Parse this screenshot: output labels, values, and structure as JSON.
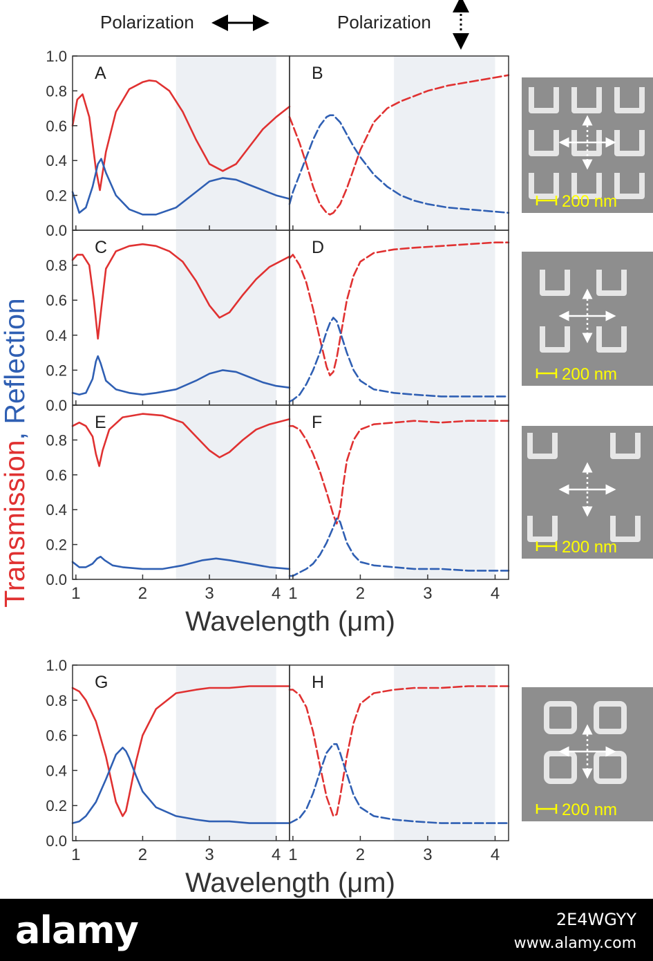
{
  "header": {
    "left_label": "Polarization",
    "right_label": "Polarization"
  },
  "ylabel_parts": [
    "Transmission",
    ", ",
    "Reflection"
  ],
  "xlabel": "Wavelength (μm)",
  "scale_label": "200 nm",
  "colors": {
    "transmission": "#e03131",
    "reflection": "#2f5fb3",
    "shade": "#edf0f4",
    "sem_bg": "#8e8e8e",
    "scale": "#ffff00"
  },
  "footer": {
    "logo": "alamy",
    "image_id": "2E4WGYY",
    "site": "www.alamy.com"
  },
  "chart_data": {
    "type": "line",
    "x_range": [
      0.95,
      4.2
    ],
    "y_range": [
      0,
      1.0
    ],
    "x_ticks": [
      "1",
      "2",
      "3",
      "4"
    ],
    "y_ticks": [
      "0.0",
      "0.2",
      "0.4",
      "0.6",
      "0.8",
      "1.0"
    ],
    "shaded_band": [
      2.5,
      4.0
    ],
    "panels": [
      {
        "label": "A",
        "polarization": "horizontal",
        "series": [
          {
            "quantity": "transmission",
            "style": "solid",
            "x": [
              0.95,
              1.02,
              1.1,
              1.2,
              1.3,
              1.36,
              1.45,
              1.6,
              1.8,
              2.0,
              2.1,
              2.2,
              2.4,
              2.6,
              2.8,
              3.0,
              3.2,
              3.4,
              3.6,
              3.8,
              4.0,
              4.2
            ],
            "y": [
              0.6,
              0.75,
              0.78,
              0.65,
              0.35,
              0.23,
              0.45,
              0.68,
              0.81,
              0.85,
              0.86,
              0.855,
              0.8,
              0.68,
              0.52,
              0.38,
              0.34,
              0.38,
              0.48,
              0.58,
              0.65,
              0.71
            ]
          },
          {
            "quantity": "reflection",
            "style": "solid",
            "x": [
              0.95,
              1.05,
              1.15,
              1.25,
              1.33,
              1.38,
              1.45,
              1.6,
              1.8,
              2.0,
              2.2,
              2.5,
              2.8,
              3.0,
              3.2,
              3.4,
              3.6,
              3.8,
              4.0,
              4.2
            ],
            "y": [
              0.22,
              0.1,
              0.13,
              0.25,
              0.38,
              0.41,
              0.33,
              0.2,
              0.12,
              0.09,
              0.09,
              0.13,
              0.22,
              0.28,
              0.3,
              0.29,
              0.26,
              0.23,
              0.2,
              0.18
            ]
          }
        ]
      },
      {
        "label": "B",
        "polarization": "vertical",
        "series": [
          {
            "quantity": "transmission",
            "style": "dashed",
            "x": [
              0.95,
              1.0,
              1.1,
              1.2,
              1.3,
              1.4,
              1.5,
              1.55,
              1.6,
              1.7,
              1.8,
              1.9,
              2.0,
              2.2,
              2.4,
              2.6,
              2.8,
              3.0,
              3.3,
              3.6,
              3.9,
              4.2
            ],
            "y": [
              0.65,
              0.6,
              0.5,
              0.38,
              0.25,
              0.15,
              0.1,
              0.09,
              0.1,
              0.15,
              0.24,
              0.35,
              0.46,
              0.62,
              0.7,
              0.74,
              0.77,
              0.8,
              0.83,
              0.85,
              0.87,
              0.89
            ]
          },
          {
            "quantity": "reflection",
            "style": "dashed",
            "x": [
              0.95,
              1.0,
              1.1,
              1.2,
              1.3,
              1.4,
              1.5,
              1.55,
              1.6,
              1.7,
              1.8,
              1.9,
              2.0,
              2.2,
              2.4,
              2.6,
              2.8,
              3.0,
              3.3,
              3.6,
              3.9,
              4.2
            ],
            "y": [
              0.15,
              0.22,
              0.32,
              0.42,
              0.52,
              0.6,
              0.65,
              0.66,
              0.66,
              0.62,
              0.55,
              0.48,
              0.42,
              0.32,
              0.25,
              0.2,
              0.17,
              0.15,
              0.13,
              0.12,
              0.11,
              0.1
            ]
          }
        ]
      },
      {
        "label": "C",
        "polarization": "horizontal",
        "series": [
          {
            "quantity": "transmission",
            "style": "solid",
            "x": [
              0.95,
              1.02,
              1.1,
              1.2,
              1.27,
              1.33,
              1.38,
              1.45,
              1.6,
              1.8,
              2.0,
              2.2,
              2.4,
              2.6,
              2.8,
              3.0,
              3.15,
              3.3,
              3.5,
              3.7,
              3.9,
              4.2
            ],
            "y": [
              0.83,
              0.86,
              0.86,
              0.8,
              0.6,
              0.38,
              0.55,
              0.78,
              0.88,
              0.91,
              0.92,
              0.91,
              0.88,
              0.82,
              0.71,
              0.57,
              0.5,
              0.53,
              0.63,
              0.72,
              0.79,
              0.85
            ]
          },
          {
            "quantity": "reflection",
            "style": "solid",
            "x": [
              0.95,
              1.05,
              1.15,
              1.25,
              1.3,
              1.33,
              1.37,
              1.45,
              1.6,
              1.8,
              2.0,
              2.2,
              2.5,
              2.8,
              3.0,
              3.2,
              3.4,
              3.6,
              3.8,
              4.0,
              4.2
            ],
            "y": [
              0.07,
              0.06,
              0.07,
              0.15,
              0.25,
              0.28,
              0.24,
              0.14,
              0.09,
              0.07,
              0.06,
              0.07,
              0.09,
              0.14,
              0.18,
              0.2,
              0.19,
              0.16,
              0.13,
              0.11,
              0.1
            ]
          }
        ]
      },
      {
        "label": "D",
        "polarization": "vertical",
        "series": [
          {
            "quantity": "transmission",
            "style": "dashed",
            "x": [
              0.95,
              1.0,
              1.1,
              1.2,
              1.3,
              1.4,
              1.5,
              1.55,
              1.6,
              1.65,
              1.7,
              1.8,
              1.9,
              2.0,
              2.2,
              2.5,
              2.8,
              3.2,
              3.6,
              4.0,
              4.2
            ],
            "y": [
              0.84,
              0.86,
              0.8,
              0.7,
              0.55,
              0.38,
              0.22,
              0.17,
              0.19,
              0.27,
              0.38,
              0.6,
              0.74,
              0.82,
              0.87,
              0.89,
              0.9,
              0.91,
              0.92,
              0.93,
              0.93
            ]
          },
          {
            "quantity": "reflection",
            "style": "dashed",
            "x": [
              0.95,
              1.0,
              1.1,
              1.2,
              1.3,
              1.4,
              1.5,
              1.55,
              1.6,
              1.65,
              1.7,
              1.8,
              1.9,
              2.0,
              2.2,
              2.5,
              2.8,
              3.2,
              3.6,
              4.0,
              4.2
            ],
            "y": [
              0.02,
              0.03,
              0.06,
              0.12,
              0.2,
              0.3,
              0.42,
              0.47,
              0.5,
              0.48,
              0.42,
              0.3,
              0.2,
              0.14,
              0.09,
              0.07,
              0.06,
              0.05,
              0.05,
              0.05,
              0.05
            ]
          }
        ]
      },
      {
        "label": "E",
        "polarization": "horizontal",
        "series": [
          {
            "quantity": "transmission",
            "style": "solid",
            "x": [
              0.95,
              1.05,
              1.15,
              1.25,
              1.3,
              1.35,
              1.4,
              1.5,
              1.7,
              2.0,
              2.3,
              2.6,
              2.8,
              3.0,
              3.15,
              3.3,
              3.5,
              3.7,
              3.9,
              4.2
            ],
            "y": [
              0.88,
              0.9,
              0.88,
              0.82,
              0.72,
              0.65,
              0.74,
              0.86,
              0.93,
              0.95,
              0.94,
              0.9,
              0.82,
              0.74,
              0.7,
              0.73,
              0.8,
              0.86,
              0.89,
              0.92
            ]
          },
          {
            "quantity": "reflection",
            "style": "solid",
            "x": [
              0.95,
              1.05,
              1.15,
              1.25,
              1.32,
              1.37,
              1.43,
              1.55,
              1.7,
              2.0,
              2.3,
              2.6,
              2.9,
              3.1,
              3.3,
              3.6,
              3.9,
              4.2
            ],
            "y": [
              0.1,
              0.07,
              0.07,
              0.09,
              0.12,
              0.13,
              0.11,
              0.08,
              0.07,
              0.06,
              0.06,
              0.08,
              0.11,
              0.12,
              0.11,
              0.09,
              0.07,
              0.06
            ]
          }
        ]
      },
      {
        "label": "F",
        "polarization": "vertical",
        "series": [
          {
            "quantity": "transmission",
            "style": "dashed",
            "x": [
              0.95,
              1.0,
              1.1,
              1.2,
              1.3,
              1.4,
              1.5,
              1.6,
              1.65,
              1.7,
              1.75,
              1.8,
              1.9,
              2.0,
              2.2,
              2.5,
              2.8,
              3.2,
              3.6,
              4.0,
              4.2
            ],
            "y": [
              0.88,
              0.88,
              0.86,
              0.8,
              0.72,
              0.62,
              0.5,
              0.37,
              0.32,
              0.4,
              0.55,
              0.68,
              0.8,
              0.86,
              0.89,
              0.9,
              0.91,
              0.9,
              0.91,
              0.91,
              0.91
            ]
          },
          {
            "quantity": "reflection",
            "style": "dashed",
            "x": [
              0.95,
              1.0,
              1.1,
              1.2,
              1.3,
              1.4,
              1.5,
              1.6,
              1.65,
              1.7,
              1.75,
              1.8,
              1.9,
              2.0,
              2.2,
              2.5,
              2.8,
              3.2,
              3.6,
              4.0,
              4.2
            ],
            "y": [
              0.02,
              0.02,
              0.04,
              0.06,
              0.09,
              0.14,
              0.21,
              0.3,
              0.35,
              0.33,
              0.27,
              0.21,
              0.14,
              0.1,
              0.08,
              0.07,
              0.06,
              0.06,
              0.05,
              0.05,
              0.05
            ]
          }
        ]
      },
      {
        "label": "G",
        "polarization": "horizontal",
        "series": [
          {
            "quantity": "transmission",
            "style": "solid",
            "x": [
              0.95,
              1.05,
              1.15,
              1.3,
              1.45,
              1.6,
              1.7,
              1.75,
              1.8,
              1.9,
              2.0,
              2.2,
              2.5,
              2.8,
              3.0,
              3.3,
              3.6,
              3.9,
              4.2
            ],
            "y": [
              0.87,
              0.85,
              0.8,
              0.68,
              0.48,
              0.22,
              0.14,
              0.17,
              0.26,
              0.45,
              0.6,
              0.75,
              0.84,
              0.86,
              0.87,
              0.87,
              0.88,
              0.88,
              0.88
            ]
          },
          {
            "quantity": "reflection",
            "style": "solid",
            "x": [
              0.95,
              1.05,
              1.15,
              1.3,
              1.45,
              1.6,
              1.7,
              1.75,
              1.8,
              1.9,
              2.0,
              2.2,
              2.5,
              2.8,
              3.0,
              3.3,
              3.6,
              3.9,
              4.2
            ],
            "y": [
              0.1,
              0.11,
              0.14,
              0.22,
              0.35,
              0.49,
              0.53,
              0.51,
              0.47,
              0.37,
              0.28,
              0.19,
              0.14,
              0.12,
              0.11,
              0.11,
              0.1,
              0.1,
              0.1
            ]
          }
        ]
      },
      {
        "label": "H",
        "polarization": "vertical",
        "series": [
          {
            "quantity": "transmission",
            "style": "dashed",
            "x": [
              0.95,
              1.0,
              1.1,
              1.2,
              1.3,
              1.4,
              1.5,
              1.6,
              1.65,
              1.7,
              1.8,
              1.9,
              2.0,
              2.2,
              2.5,
              2.8,
              3.2,
              3.6,
              4.0,
              4.2
            ],
            "y": [
              0.86,
              0.86,
              0.83,
              0.76,
              0.62,
              0.43,
              0.25,
              0.14,
              0.15,
              0.25,
              0.48,
              0.67,
              0.78,
              0.84,
              0.86,
              0.87,
              0.87,
              0.88,
              0.88,
              0.88
            ]
          },
          {
            "quantity": "reflection",
            "style": "dashed",
            "x": [
              0.95,
              1.0,
              1.1,
              1.2,
              1.3,
              1.4,
              1.5,
              1.6,
              1.65,
              1.7,
              1.8,
              1.9,
              2.0,
              2.2,
              2.5,
              2.8,
              3.2,
              3.6,
              4.0,
              4.2
            ],
            "y": [
              0.1,
              0.11,
              0.13,
              0.18,
              0.27,
              0.39,
              0.5,
              0.55,
              0.55,
              0.5,
              0.38,
              0.26,
              0.19,
              0.14,
              0.12,
              0.11,
              0.1,
              0.1,
              0.1,
              0.1
            ]
          }
        ]
      }
    ]
  }
}
